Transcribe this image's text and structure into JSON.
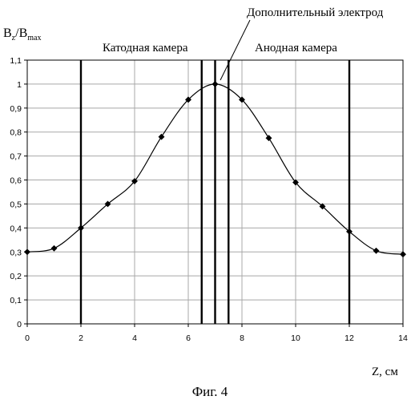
{
  "chart_data": {
    "type": "line",
    "ylabel_main": "B",
    "ylabel_sub1": "z",
    "ylabel_mid": "/B",
    "ylabel_sub2": "max",
    "xlabel": "Z, см",
    "caption": "Фиг. 4",
    "annotations": {
      "cathode": "Катодная камера",
      "anode": "Анодная камера",
      "electrode": "Дополнительный электрод"
    },
    "xlim": [
      0,
      14
    ],
    "ylim": [
      0,
      1.1
    ],
    "x_ticks": [
      0,
      2,
      4,
      6,
      8,
      10,
      12,
      14
    ],
    "x_tick_labels": [
      "0",
      "2",
      "4",
      "6",
      "8",
      "10",
      "12",
      "14"
    ],
    "y_ticks": [
      0,
      0.1,
      0.2,
      0.3,
      0.4,
      0.5,
      0.6,
      0.7,
      0.8,
      0.9,
      1.0,
      1.1
    ],
    "y_tick_labels": [
      "0",
      "0,1",
      "0,2",
      "0,3",
      "0,4",
      "0,5",
      "0,6",
      "0,7",
      "0,8",
      "0,9",
      "1",
      "1,1"
    ],
    "vertical_lines_x": [
      2,
      6.5,
      7,
      7.5,
      12
    ],
    "series": [
      {
        "x": [
          0,
          1,
          2,
          3,
          4,
          5,
          6,
          7,
          8,
          9,
          10,
          11,
          12,
          13,
          14
        ],
        "y": [
          0.3,
          0.315,
          0.4,
          0.5,
          0.595,
          0.78,
          0.935,
          1.0,
          0.935,
          0.775,
          0.59,
          0.49,
          0.385,
          0.305,
          0.29
        ]
      }
    ],
    "grid": true
  }
}
